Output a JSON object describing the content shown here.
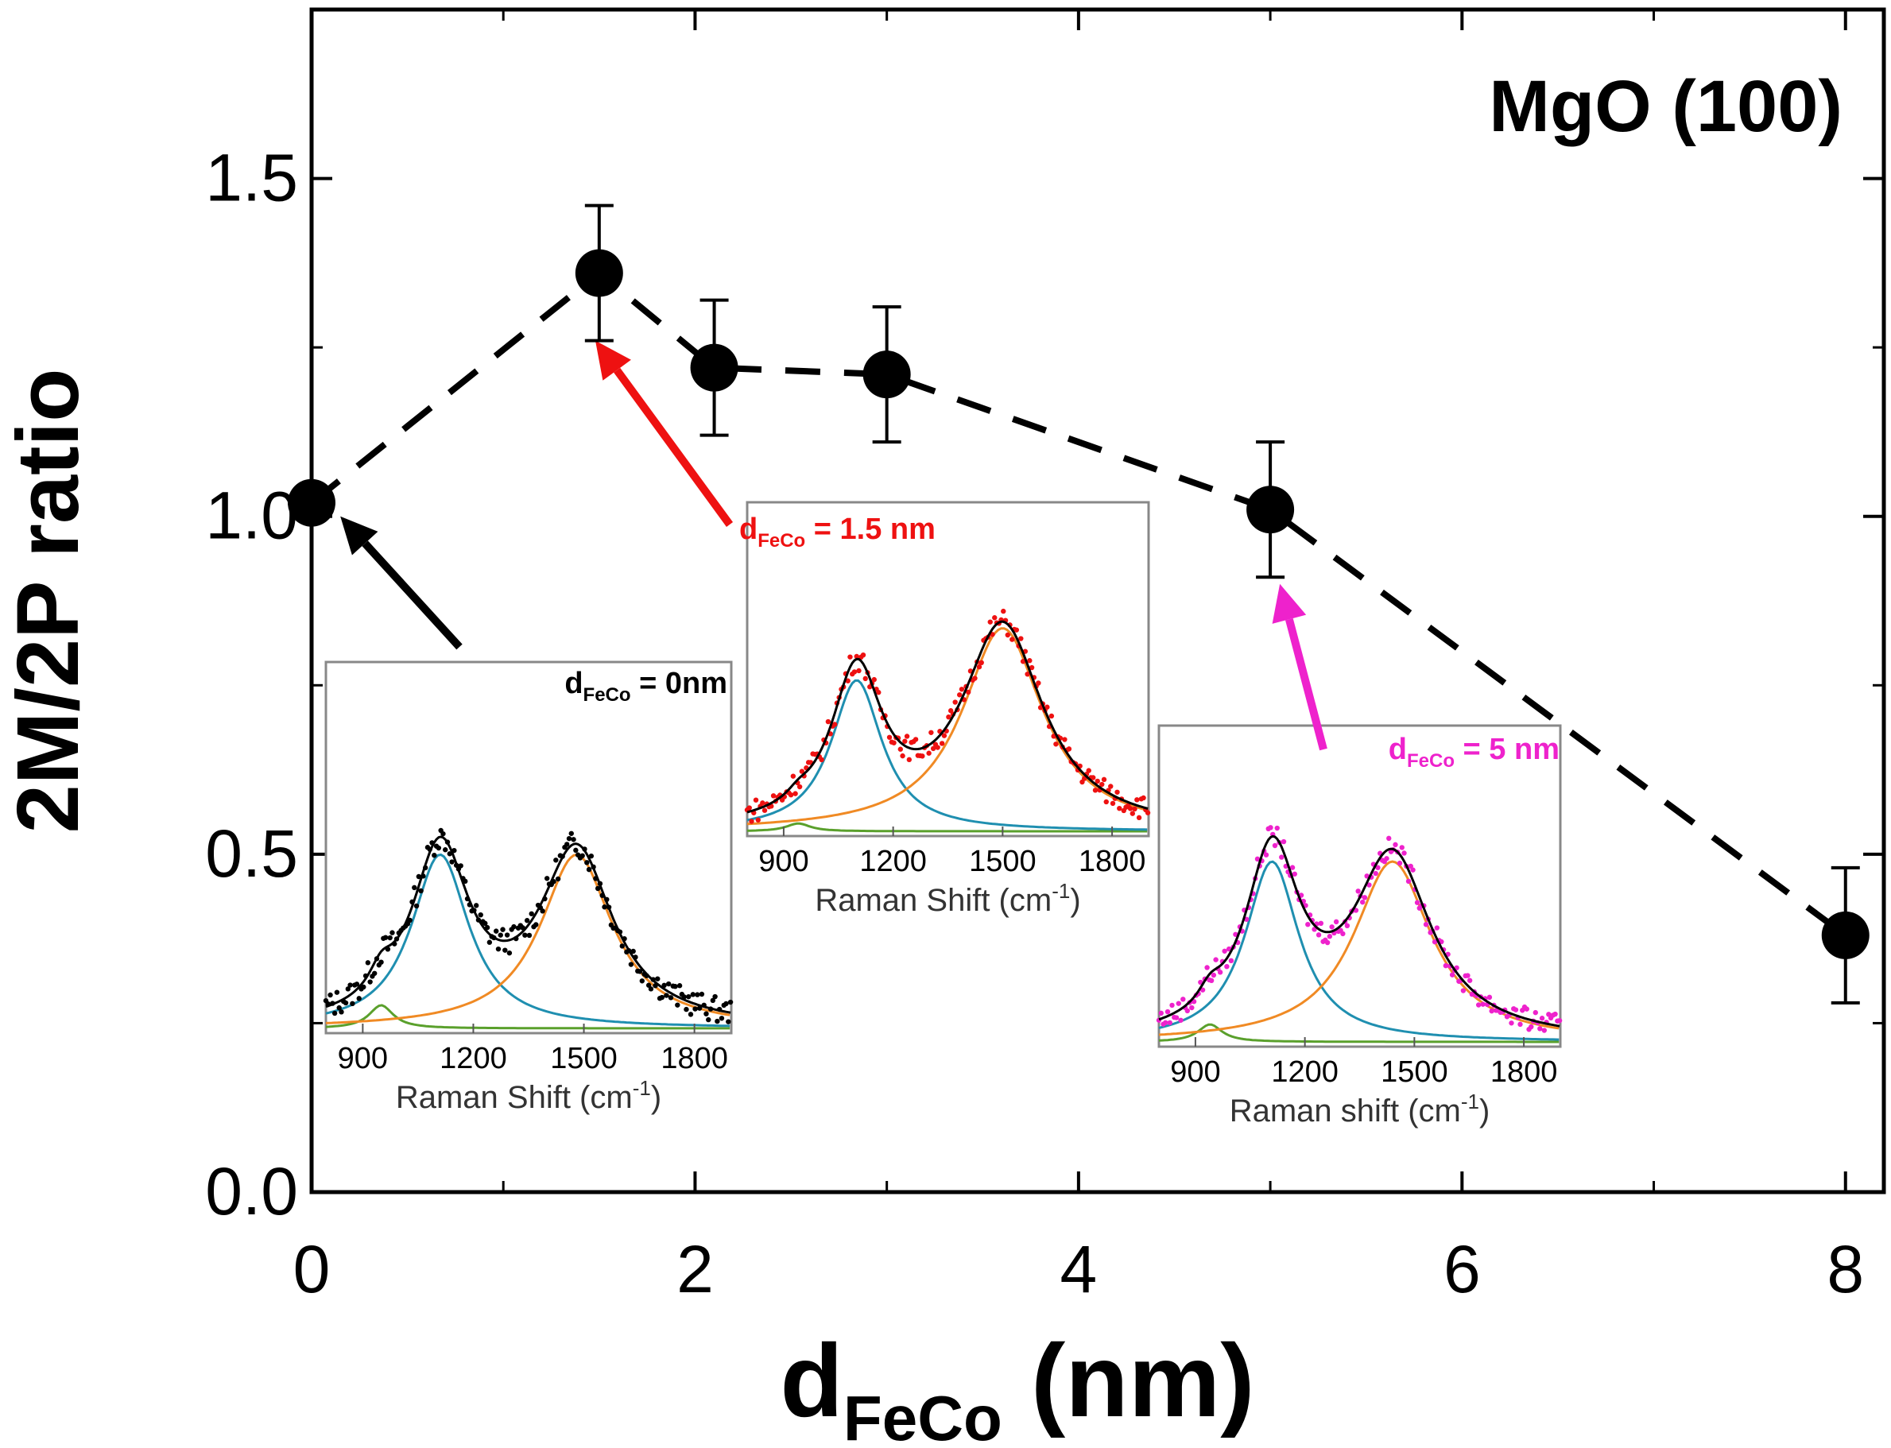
{
  "chart_data": {
    "type": "scatter",
    "title": "",
    "annotation": "MgO (100)",
    "xlabel": {
      "main": "d",
      "sub": "FeCo",
      "unit": " (nm)"
    },
    "ylabel": "2M/2P ratio",
    "xlim": [
      0,
      8.2
    ],
    "ylim": [
      0,
      1.75
    ],
    "xticks": [
      0,
      2,
      4,
      6,
      8
    ],
    "xtick_labels": [
      "0",
      "2",
      "4",
      "6",
      "8"
    ],
    "yticks": [
      0.0,
      0.5,
      1.0,
      1.5
    ],
    "ytick_labels": [
      "0.0",
      "0.5",
      "1.0",
      "1.5"
    ],
    "series": [
      {
        "name": "2M/2P ratio",
        "marker": "circle",
        "line": "dashed",
        "color": "#000000",
        "x": [
          0,
          1.5,
          2.1,
          3.0,
          5.0,
          8.0
        ],
        "y": [
          1.02,
          1.36,
          1.22,
          1.21,
          1.01,
          0.38
        ],
        "error": [
          0,
          0.1,
          0.1,
          0.1,
          0.1,
          0.1
        ]
      }
    ],
    "fit_line": {
      "style": "dashed",
      "x": [
        0,
        1.5,
        2.1,
        3.0,
        5.0,
        8.0
      ],
      "y": [
        1.02,
        1.36,
        1.22,
        1.21,
        1.01,
        0.38
      ]
    },
    "insets": [
      {
        "id": "inset-0nm",
        "label_main": "d",
        "label_sub": "FeCo",
        "label_rest": " = 0nm",
        "label_color": "#000000",
        "data_color": "#000000",
        "xlabel_main": "Raman Shift (cm",
        "xlabel_sup": "-1",
        "xlabel_end": ")",
        "xticks": [
          900,
          1200,
          1500,
          1800
        ],
        "xtick_labels": [
          "900",
          "1200",
          "1500",
          "1800"
        ],
        "xlim": [
          800,
          1900
        ],
        "peaks": [
          {
            "center": 950,
            "width": 40,
            "height": 0.08,
            "color": "#5aa02c"
          },
          {
            "center": 1110,
            "width": 95,
            "height": 0.6,
            "color": "#1f8fb0"
          },
          {
            "center": 1480,
            "width": 120,
            "height": 0.6,
            "color": "#f08a24"
          }
        ],
        "arrow_target": {
          "x": 0.15,
          "y": 1.0
        },
        "arrow_color": "#000000"
      },
      {
        "id": "inset-1.5nm",
        "label_main": "d",
        "label_sub": "FeCo",
        "label_rest": " = 1.5 nm",
        "label_color": "#ee1111",
        "data_color": "#ee1111",
        "xlabel_main": "Raman Shift (cm",
        "xlabel_sup": "-1",
        "xlabel_end": ")",
        "xticks": [
          900,
          1200,
          1500,
          1800
        ],
        "xtick_labels": [
          "900",
          "1200",
          "1500",
          "1800"
        ],
        "xlim": [
          800,
          1900
        ],
        "peaks": [
          {
            "center": 940,
            "width": 40,
            "height": 0.03,
            "color": "#5aa02c"
          },
          {
            "center": 1100,
            "width": 85,
            "height": 0.58,
            "color": "#1f8fb0"
          },
          {
            "center": 1500,
            "width": 135,
            "height": 0.78,
            "color": "#f08a24"
          }
        ],
        "arrow_target": {
          "x": 1.48,
          "y": 1.26
        },
        "arrow_color": "#ee1111"
      },
      {
        "id": "inset-5nm",
        "label_main": "d",
        "label_sub": "FeCo",
        "label_rest": " = 5 nm",
        "label_color": "#ee22cc",
        "data_color": "#ee22cc",
        "xlabel_main": "Raman shift (cm",
        "xlabel_sup": "-1",
        "xlabel_end": ")",
        "xticks": [
          900,
          1200,
          1500,
          1800
        ],
        "xtick_labels": [
          "900",
          "1200",
          "1500",
          "1800"
        ],
        "xlim": [
          800,
          1900
        ],
        "peaks": [
          {
            "center": 940,
            "width": 40,
            "height": 0.07,
            "color": "#5aa02c"
          },
          {
            "center": 1110,
            "width": 90,
            "height": 0.72,
            "color": "#1f8fb0"
          },
          {
            "center": 1440,
            "width": 130,
            "height": 0.72,
            "color": "#f08a24"
          }
        ],
        "arrow_target": {
          "x": 5.05,
          "y": 0.9
        },
        "arrow_color": "#ee22cc"
      }
    ]
  }
}
